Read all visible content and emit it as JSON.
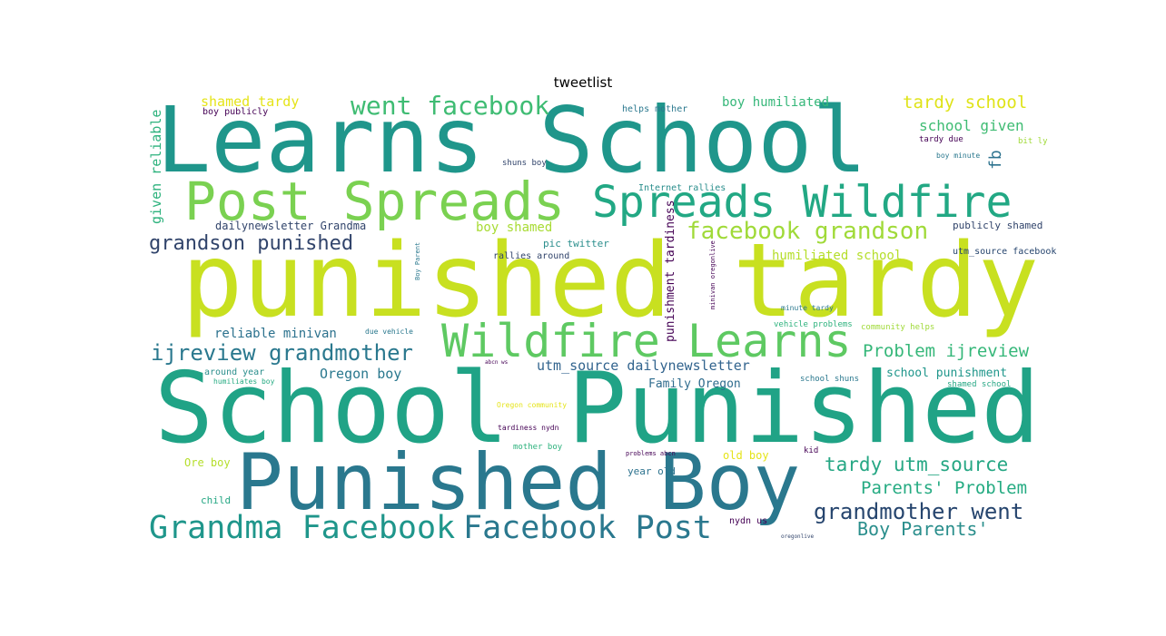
{
  "title": "tweetlist",
  "palette": {
    "teal": "#1f968b",
    "dark_teal": "#2a788e",
    "navy": "#31446b",
    "purple": "#440154",
    "lime": "#c8e020",
    "green": "#5ec962",
    "yellow": "#fde725",
    "mint": "#3fbc73",
    "sea": "#26a784"
  },
  "words": [
    "Learns School",
    "punished tardy",
    "School Punished",
    "Punished Boy",
    "Post Spreads",
    "Spreads Wildfire",
    "Wildfire Learns",
    "Grandma Facebook",
    "Facebook Post",
    "went facebook",
    "facebook grandson",
    "grandson punished",
    "ijreview grandmother",
    "grandmother went",
    "tardy utm_source",
    "Parents' Problem",
    "Boy Parents'",
    "Problem ijreview",
    "tardy school",
    "school given",
    "shamed tardy",
    "boy humiliated",
    "given reliable",
    "reliable minivan",
    "humiliated school",
    "utm_source dailynewsletter",
    "dailynewsletter Grandma",
    "punishment tardiness",
    "school punishment",
    "Oregon boy",
    "Family Oregon",
    "boy shamed",
    "fb",
    "boy publicly",
    "helps mother",
    "publicly shamed",
    "utm_source facebook",
    "pic twitter",
    "rallies around",
    "Internet rallies",
    "shuns boy",
    "tardy due",
    "bit ly",
    "boy minute",
    "minute tardy",
    "vehicle problems",
    "community helps",
    "due vehicle",
    "around year",
    "humiliates boy",
    "school shuns",
    "shamed school",
    "Oregon community",
    "tardiness nydn",
    "mother boy",
    "old boy",
    "kid",
    "problems abcn",
    "year old",
    "Ore boy",
    "child",
    "nydn us",
    "Boy Parent",
    "minivan oregonlive",
    "oregonlive",
    "abcn ws"
  ]
}
